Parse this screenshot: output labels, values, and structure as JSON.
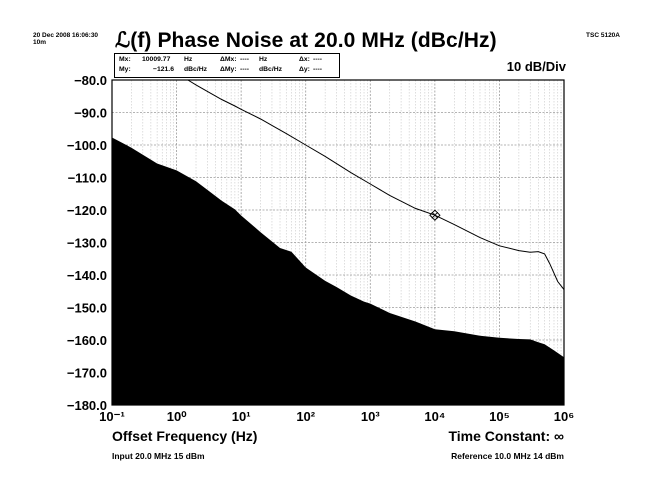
{
  "header": {
    "timestamp_line1": "20 Dec 2008 16:06:30",
    "timestamp_line2": "10m",
    "instrument": "TSC 5120A",
    "scale_per_div": "10 dB/Div"
  },
  "marker": {
    "mx_label": "Mx:",
    "mx_value": "10009.77",
    "mx_unit": "Hz",
    "my_label": "My:",
    "my_value": "−121.6",
    "my_unit": "dBc/Hz",
    "dmx_label": "ΔMx:",
    "dmx_value": "----",
    "dmx_unit": "Hz",
    "dmy_label": "ΔMy:",
    "dmy_value": "----",
    "dmy_unit": "dBc/Hz",
    "dx_label": "Δx:",
    "dx_value": "----",
    "dy_label": "Δy:",
    "dy_value": "----"
  },
  "footer": {
    "time_constant": "Time Constant: ∞",
    "input_info": "Input 20.0 MHz 15 dBm",
    "reference_info": "Reference 10.0 MHz 14 dBm"
  },
  "colors": {
    "background": "#ffffff",
    "trace": "#000000",
    "noise_floor_fill": "#000000",
    "grid_major": "#9a9a9a",
    "grid_minor": "#c8c8c8"
  },
  "chart_data": {
    "type": "line",
    "title": "ℒ(f) Phase Noise at 20.0 MHz (dBc/Hz)",
    "xlabel": "Offset Frequency (Hz)",
    "ylabel": "",
    "x_scale": "log",
    "xlim": [
      0.1,
      1000000
    ],
    "ylim": [
      -180,
      -80
    ],
    "grid": true,
    "xtick_values": [
      0.1,
      1,
      10,
      100,
      1000,
      10000,
      100000,
      1000000
    ],
    "xtick_labels": [
      "10⁻¹",
      "10⁰",
      "10¹",
      "10²",
      "10³",
      "10⁴",
      "10⁵",
      "10⁶"
    ],
    "ytick_values": [
      -80,
      -90,
      -100,
      -110,
      -120,
      -130,
      -140,
      -150,
      -160,
      -170,
      -180
    ],
    "ytick_labels": [
      "−80.0",
      "−90.0",
      "−100.0",
      "−110.0",
      "−120.0",
      "−130.0",
      "−140.0",
      "−150.0",
      "−160.0",
      "−170.0",
      "−180.0"
    ],
    "series": [
      {
        "role": "phase_noise",
        "x": [
          1.5,
          2,
          3,
          5,
          8,
          10,
          20,
          50,
          100,
          200,
          500,
          1000,
          2000,
          5000,
          10000,
          20000,
          50000,
          100000,
          200000,
          300000,
          400000,
          500000,
          600000,
          800000,
          1000000
        ],
        "y": [
          -80,
          -81.5,
          -83.5,
          -86,
          -88,
          -89,
          -92,
          -96.5,
          -100,
          -103.5,
          -108.5,
          -112,
          -115.5,
          -119.5,
          -121.6,
          -124.5,
          -128.5,
          -131,
          -132.5,
          -133,
          -132.8,
          -133.5,
          -136.5,
          -142,
          -144.5
        ]
      },
      {
        "role": "noise_floor",
        "x": [
          0.1,
          0.2,
          0.5,
          1,
          2,
          3,
          5,
          8,
          10,
          20,
          40,
          60,
          100,
          200,
          300,
          500,
          800,
          1000,
          2000,
          5000,
          10000,
          20000,
          50000,
          100000,
          200000,
          300000,
          400000,
          500000,
          700000,
          1000000
        ],
        "y": [
          -97.5,
          -101,
          -105.5,
          -108,
          -111,
          -114,
          -117,
          -120,
          -121.5,
          -127,
          -131.5,
          -133,
          -137.5,
          -142,
          -143.5,
          -146.5,
          -148,
          -149,
          -151.5,
          -154.5,
          -156.5,
          -157.5,
          -158.5,
          -159.5,
          -159.5,
          -160,
          -160.5,
          -161.5,
          -163,
          -165.5
        ]
      }
    ],
    "markers": [
      {
        "x": 10009.77,
        "y": -121.6
      }
    ]
  }
}
